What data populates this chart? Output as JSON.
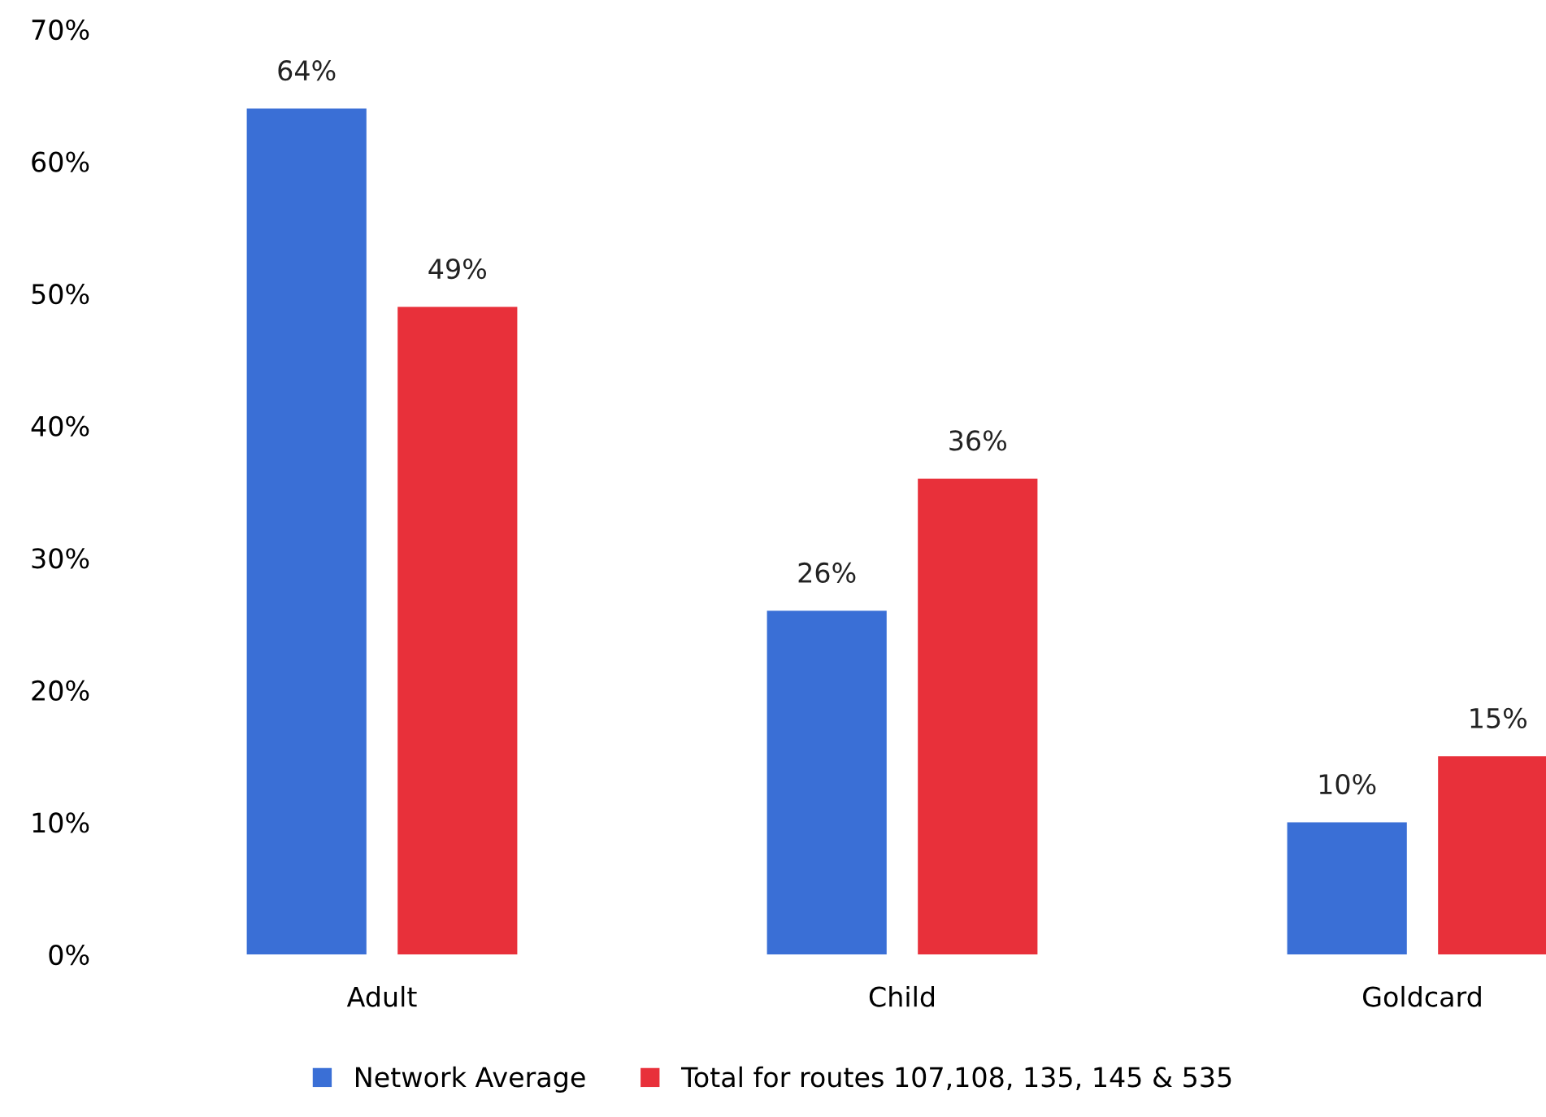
{
  "chart_data": {
    "type": "bar",
    "categories": [
      "Adult",
      "Child",
      "Goldcard"
    ],
    "series": [
      {
        "name": "Network Average",
        "color": "#3a6fd6",
        "values": [
          64,
          26,
          10
        ],
        "value_labels": [
          "64%",
          "26%",
          "10%"
        ]
      },
      {
        "name": "Total for routes 107,108, 135, 145 & 535",
        "color": "#e8303a",
        "values": [
          49,
          36,
          15
        ],
        "value_labels": [
          "49%",
          "36%",
          "15%"
        ]
      }
    ],
    "ylim": [
      0,
      70
    ],
    "yticks": [
      {
        "value": 0,
        "label": "0%"
      },
      {
        "value": 10,
        "label": "10%"
      },
      {
        "value": 20,
        "label": "20%"
      },
      {
        "value": 30,
        "label": "30%"
      },
      {
        "value": 40,
        "label": "40%"
      },
      {
        "value": 50,
        "label": "50%"
      },
      {
        "value": 60,
        "label": "60%"
      },
      {
        "value": 70,
        "label": "70%"
      }
    ],
    "grid": false,
    "legend": "bottom"
  }
}
